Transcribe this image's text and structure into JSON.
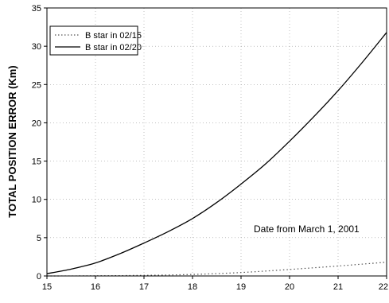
{
  "chart_data": {
    "type": "line",
    "title": "",
    "xlabel": "",
    "ylabel": "TOTAL POSITION ERROR (Km)",
    "xlim": [
      15,
      22
    ],
    "ylim": [
      0,
      35
    ],
    "x_ticks": [
      "15",
      "16",
      "17",
      "18",
      "19",
      "20",
      "21",
      "22"
    ],
    "y_ticks": [
      "0",
      "5",
      "10",
      "15",
      "20",
      "25",
      "30",
      "35"
    ],
    "x_tick_values": [
      15,
      16,
      17,
      18,
      19,
      20,
      21,
      22
    ],
    "y_tick_values": [
      0,
      5,
      10,
      15,
      20,
      25,
      30,
      35
    ],
    "grid": true,
    "legend_position": "top-left",
    "annotation": "Date from March 1, 2001",
    "series": [
      {
        "name": "B star in 02/15",
        "style": "dotted",
        "color": "#555555",
        "x": [
          15,
          16,
          17,
          18,
          19,
          20,
          21,
          22
        ],
        "y": [
          0.0,
          0.02,
          0.08,
          0.2,
          0.45,
          0.85,
          1.3,
          1.8
        ]
      },
      {
        "name": "B star in 02/20",
        "style": "solid",
        "color": "#000000",
        "x": [
          15,
          15.5,
          16,
          16.5,
          17,
          17.5,
          18,
          18.5,
          19,
          19.5,
          20,
          20.5,
          21,
          21.5,
          22
        ],
        "y": [
          0.3,
          0.9,
          1.7,
          2.9,
          4.3,
          5.8,
          7.5,
          9.6,
          12.0,
          14.6,
          17.6,
          20.8,
          24.2,
          27.9,
          31.8
        ]
      }
    ]
  }
}
